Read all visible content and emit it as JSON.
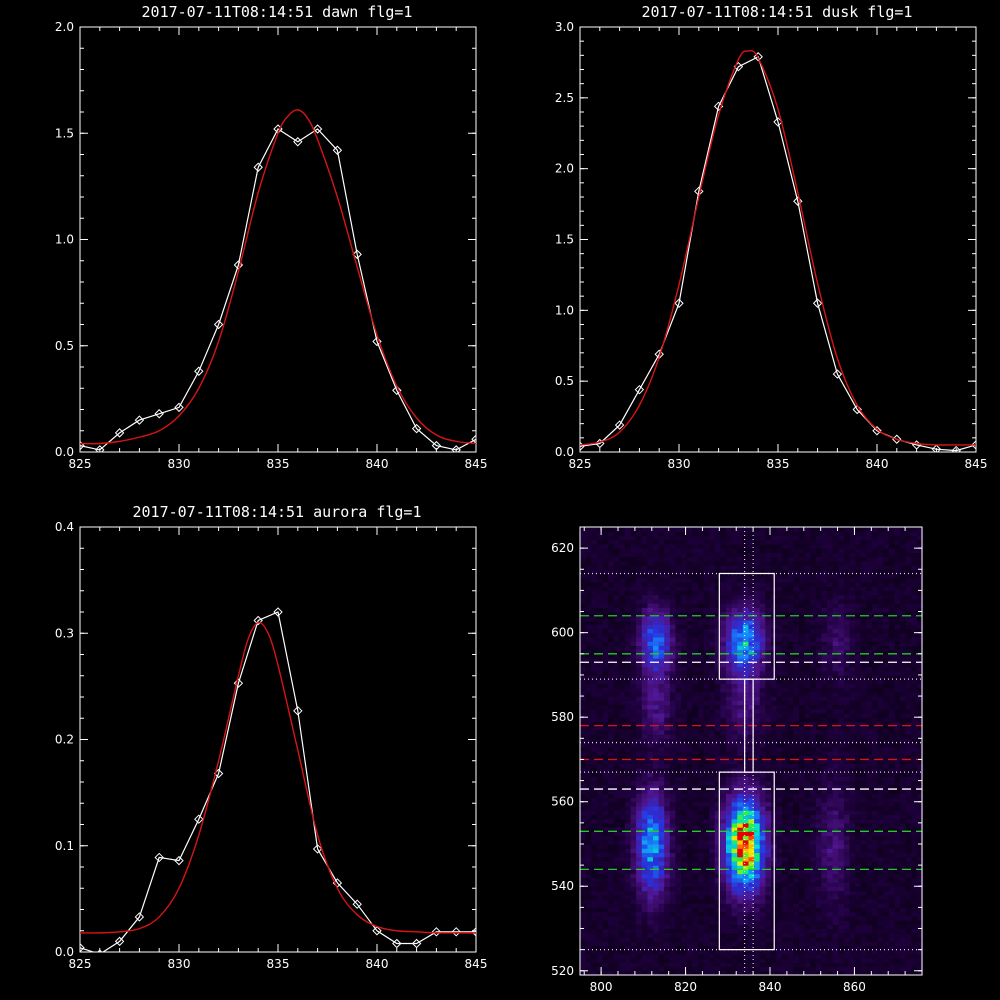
{
  "chart_data": [
    {
      "type": "line",
      "title": "2017-07-11T08:14:51 dawn flg=1",
      "xlabel": "",
      "ylabel": "",
      "xlim": [
        825,
        845
      ],
      "ylim": [
        0,
        2.0
      ],
      "xticks": [
        "825",
        "830",
        "835",
        "840",
        "845"
      ],
      "yticks": [
        "0.0",
        "0.5",
        "1.0",
        "1.5",
        "2.0"
      ],
      "series": [
        {
          "role": "observed",
          "color": "#ffffff",
          "marker": "diamond",
          "x": [
            825,
            826,
            827,
            828,
            829,
            830,
            831,
            832,
            833,
            834,
            835,
            836,
            837,
            838,
            839,
            840,
            841,
            842,
            843,
            844,
            845
          ],
          "y": [
            0.03,
            0.01,
            0.09,
            0.15,
            0.18,
            0.21,
            0.38,
            0.6,
            0.88,
            1.34,
            1.52,
            1.46,
            1.52,
            1.42,
            0.93,
            0.52,
            0.29,
            0.11,
            0.03,
            0.01,
            0.06
          ]
        },
        {
          "role": "fit",
          "color": "#d81414",
          "x": [
            825,
            826,
            827,
            828,
            829,
            830,
            831,
            832,
            833,
            834,
            835,
            835.5,
            836,
            836.5,
            837,
            838,
            839,
            840,
            841,
            842,
            843,
            844,
            845
          ],
          "y": [
            0.04,
            0.04,
            0.05,
            0.07,
            0.1,
            0.17,
            0.3,
            0.52,
            0.85,
            1.22,
            1.5,
            1.58,
            1.61,
            1.57,
            1.47,
            1.2,
            0.87,
            0.55,
            0.31,
            0.16,
            0.08,
            0.05,
            0.04
          ]
        }
      ]
    },
    {
      "type": "line",
      "title": "2017-07-11T08:14:51 dusk flg=1",
      "xlabel": "",
      "ylabel": "",
      "xlim": [
        825,
        845
      ],
      "ylim": [
        0,
        3.0
      ],
      "xticks": [
        "825",
        "830",
        "835",
        "840",
        "845"
      ],
      "yticks": [
        "0.0",
        "0.5",
        "1.0",
        "1.5",
        "2.0",
        "2.5",
        "3.0"
      ],
      "series": [
        {
          "role": "observed",
          "color": "#ffffff",
          "marker": "diamond",
          "x": [
            825,
            826,
            827,
            828,
            829,
            830,
            831,
            832,
            833,
            834,
            835,
            836,
            837,
            838,
            839,
            840,
            841,
            842,
            843,
            844,
            845
          ],
          "y": [
            0.04,
            0.06,
            0.19,
            0.44,
            0.69,
            1.05,
            1.84,
            2.44,
            2.72,
            2.79,
            2.33,
            1.77,
            1.05,
            0.55,
            0.3,
            0.15,
            0.09,
            0.05,
            0.02,
            0.01,
            0.05
          ]
        },
        {
          "role": "fit",
          "color": "#d81414",
          "x": [
            825,
            826,
            827,
            828,
            829,
            830,
            831,
            832,
            833,
            833.5,
            834,
            835,
            836,
            837,
            838,
            839,
            840,
            841,
            842,
            843,
            844,
            845
          ],
          "y": [
            0.05,
            0.07,
            0.14,
            0.33,
            0.67,
            1.18,
            1.8,
            2.38,
            2.77,
            2.83,
            2.78,
            2.42,
            1.83,
            1.19,
            0.66,
            0.33,
            0.16,
            0.09,
            0.06,
            0.05,
            0.05,
            0.05
          ]
        }
      ]
    },
    {
      "type": "line",
      "title": "2017-07-11T08:14:51 aurora flg=1",
      "xlabel": "",
      "ylabel": "",
      "xlim": [
        825,
        845
      ],
      "ylim": [
        0,
        0.4
      ],
      "xticks": [
        "825",
        "830",
        "835",
        "840",
        "845"
      ],
      "yticks": [
        "0.0",
        "0.1",
        "0.2",
        "0.3",
        "0.4"
      ],
      "series": [
        {
          "role": "observed",
          "color": "#ffffff",
          "marker": "diamond",
          "x": [
            825,
            826,
            827,
            828,
            829,
            830,
            831,
            832,
            833,
            834,
            835,
            836,
            837,
            838,
            839,
            840,
            841,
            842,
            843,
            844,
            845
          ],
          "y": [
            0.004,
            -0.002,
            0.01,
            0.033,
            0.089,
            0.086,
            0.125,
            0.168,
            0.253,
            0.312,
            0.32,
            0.227,
            0.097,
            0.065,
            0.045,
            0.02,
            0.008,
            0.008,
            0.019,
            0.019,
            0.019
          ]
        },
        {
          "role": "fit",
          "color": "#d81414",
          "x": [
            825,
            826,
            827,
            828,
            829,
            830,
            831,
            832,
            833,
            833.5,
            834,
            834.5,
            835,
            836,
            837,
            838,
            839,
            840,
            841,
            842,
            843,
            844,
            845
          ],
          "y": [
            0.018,
            0.018,
            0.019,
            0.022,
            0.033,
            0.06,
            0.11,
            0.18,
            0.26,
            0.295,
            0.31,
            0.3,
            0.27,
            0.19,
            0.11,
            0.06,
            0.035,
            0.024,
            0.02,
            0.019,
            0.018,
            0.018,
            0.018
          ]
        }
      ]
    },
    {
      "type": "heatmap",
      "title": "",
      "xlim": [
        795,
        876
      ],
      "ylim": [
        519,
        625
      ],
      "xticks": [
        "800",
        "820",
        "840",
        "860"
      ],
      "yticks": [
        "520",
        "540",
        "560",
        "580",
        "600",
        "620"
      ],
      "blobs": [
        {
          "x": 813,
          "y": 598,
          "sx": 2.5,
          "sy": 5,
          "amp": 0.38
        },
        {
          "x": 834,
          "y": 598,
          "sx": 3,
          "sy": 5,
          "amp": 0.5
        },
        {
          "x": 812,
          "y": 550,
          "sx": 2.5,
          "sy": 8,
          "amp": 0.48
        },
        {
          "x": 834,
          "y": 550,
          "sx": 3,
          "sy": 7,
          "amp": 0.95
        },
        {
          "x": 813,
          "y": 583,
          "sx": 2.5,
          "sy": 6,
          "amp": 0.14
        },
        {
          "x": 834,
          "y": 583,
          "sx": 3,
          "sy": 6,
          "amp": 0.12
        },
        {
          "x": 855,
          "y": 550,
          "sx": 2.5,
          "sy": 10,
          "amp": 0.12
        },
        {
          "x": 856,
          "y": 598,
          "sx": 2.5,
          "sy": 6,
          "amp": 0.09
        }
      ],
      "boxes": [
        {
          "x0": 828,
          "x1": 841,
          "y0": 589,
          "y1": 614
        },
        {
          "x0": 828,
          "x1": 841,
          "y0": 525,
          "y1": 567
        }
      ],
      "connector": {
        "x0": 834,
        "x1": 836,
        "y0": 567,
        "y1": 589
      },
      "vlines_dotted": [
        834,
        836
      ],
      "hlines": [
        {
          "y": 604,
          "color": "#22cc22",
          "style": "dash"
        },
        {
          "y": 595,
          "color": "#22cc22",
          "style": "dash"
        },
        {
          "y": 593,
          "color": "#ffffff",
          "style": "dash"
        },
        {
          "y": 578,
          "color": "#d81414",
          "style": "dash"
        },
        {
          "y": 570,
          "color": "#d81414",
          "style": "dash"
        },
        {
          "y": 563,
          "color": "#ffffff",
          "style": "dash"
        },
        {
          "y": 553,
          "color": "#22cc22",
          "style": "dash"
        },
        {
          "y": 544,
          "color": "#22cc22",
          "style": "dash"
        },
        {
          "y": 614,
          "color": "#dddddd",
          "style": "dot"
        },
        {
          "y": 589,
          "color": "#dddddd",
          "style": "dot"
        },
        {
          "y": 574,
          "color": "#dddddd",
          "style": "dot"
        },
        {
          "y": 567,
          "color": "#dddddd",
          "style": "dot"
        },
        {
          "y": 525,
          "color": "#dddddd",
          "style": "dot"
        }
      ]
    }
  ]
}
